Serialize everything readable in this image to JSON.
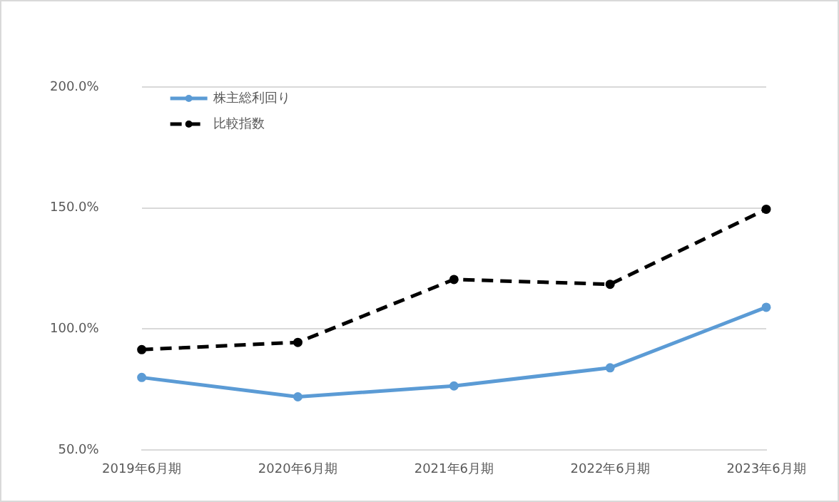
{
  "chart_data": {
    "type": "line",
    "categories": [
      "2019年6月期",
      "2020年6月期",
      "2021年6月期",
      "2022年6月期",
      "2023年6月期"
    ],
    "series": [
      {
        "name": "株主総利回り",
        "color": "#5b9bd5",
        "values": [
          80,
          72,
          76.5,
          84,
          109
        ],
        "line_style": "solid"
      },
      {
        "name": "比較指数",
        "color": "#000000",
        "values": [
          91.5,
          94.5,
          120.5,
          118.5,
          149.5
        ],
        "line_style": "dashed"
      }
    ],
    "ylim": [
      50,
      200
    ],
    "yticks": [
      {
        "value": 50,
        "label": "50.0%"
      },
      {
        "value": 100,
        "label": "100.0%"
      },
      {
        "value": 150,
        "label": "150.0%"
      },
      {
        "value": 200,
        "label": "200.0%"
      }
    ],
    "grid": "y",
    "legend": "top left",
    "marker": "circle"
  }
}
